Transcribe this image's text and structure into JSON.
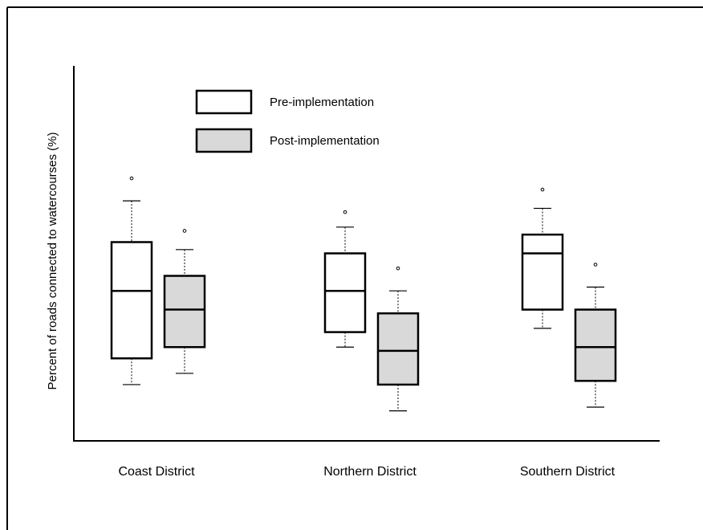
{
  "chart_data": {
    "type": "boxplot",
    "title": "",
    "xlabel": "",
    "ylabel": "Percent  of roads connected to watercourses (%)",
    "ylim": [
      0,
      100
    ],
    "legend": {
      "placement": "top-left"
    },
    "categories": [
      "Coast District",
      "Northern District",
      "Southern District"
    ],
    "series": [
      {
        "name": "Pre-implementation",
        "color": "#ffffff",
        "boxes": [
          {
            "whisker_low": 15,
            "q1": 22,
            "median": 40,
            "q3": 53,
            "whisker_high": 64,
            "outliers": [
              70
            ]
          },
          {
            "whisker_low": 25,
            "q1": 29,
            "median": 40,
            "q3": 50,
            "whisker_high": 57,
            "outliers": [
              61
            ]
          },
          {
            "whisker_low": 30,
            "q1": 35,
            "median": 50,
            "q3": 55,
            "whisker_high": 62,
            "outliers": [
              67
            ]
          }
        ]
      },
      {
        "name": "Post-implementation",
        "color": "#d9d9d9",
        "boxes": [
          {
            "whisker_low": 18,
            "q1": 25,
            "median": 35,
            "q3": 44,
            "whisker_high": 51,
            "outliers": [
              56
            ]
          },
          {
            "whisker_low": 8,
            "q1": 15,
            "median": 24,
            "q3": 34,
            "whisker_high": 40,
            "outliers": [
              46
            ]
          },
          {
            "whisker_low": 9,
            "q1": 16,
            "median": 25,
            "q3": 35,
            "whisker_high": 41,
            "outliers": [
              47
            ]
          }
        ]
      }
    ]
  }
}
